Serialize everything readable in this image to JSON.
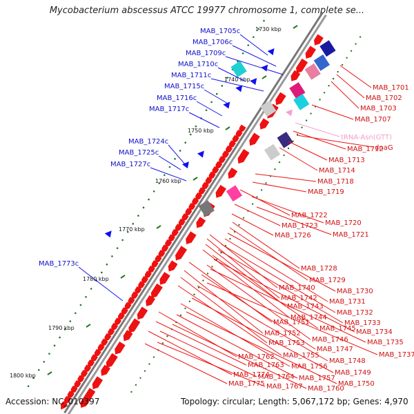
{
  "title": "Mycobacterium abscessus ATCC 19977 chromosome 1, complete se...",
  "footer": {
    "accession": "Accession: NC_010397",
    "summary": "Topology: circular; Length: 5,067,172 bp; Genes: 4,970"
  },
  "kbp_ticks": [
    "1730 kbp",
    "1740 kbp",
    "1750 kbp",
    "1760 kbp",
    "1770 kbp",
    "1780 kbp",
    "1790 kbp",
    "1800 kbp"
  ],
  "labels_minus": [
    "MAB_1705c",
    "MAB_1706c",
    "MAB_1709c",
    "MAB_1710c",
    "MAB_1711c",
    "MAB_1715c",
    "MAB_1716c",
    "MAB_1717c",
    "MAB_1724c",
    "MAB_1725c",
    "MAB_1727c",
    "MAB_1773c"
  ],
  "labels_plus": [
    "MAB_1701",
    "MAB_1702",
    "MAB_1703",
    "MAB_1707",
    "MAB_1712",
    "MAB_1713",
    "MAB_1714",
    "MAB_1718",
    "MAB_1719",
    "MAB_1722",
    "MAB_1720",
    "MAB_1723",
    "MAB_1721",
    "MAB_1726",
    "MAB_1728",
    "MAB_1729",
    "MAB_1740",
    "MAB_1730",
    "MAB_1742",
    "MAB_1731",
    "MAB_1743",
    "MAB_1732",
    "MAB_1744",
    "MAB_1733",
    "MAB_1751",
    "MAB_1745",
    "MAB_1734",
    "MAB_1752",
    "MAB_1746",
    "MAB_1735",
    "MAB_1753",
    "MAB_1747",
    "MAB_1737",
    "MAB_1755",
    "MAB_1748",
    "MAB_1762",
    "MAB_1756",
    "MAB_1749",
    "MAB_1763",
    "MAB_1774",
    "MAB_1764",
    "MAB_1757",
    "MAB_1750",
    "MAB_1775",
    "MAB_1767",
    "MAB_1760"
  ],
  "rna_label": "tRNA-Asn(GTT)",
  "dnaG_label": "dnaG",
  "colors": {
    "cds_plus": "#ee1111",
    "cds_minus": "#1111ee",
    "backbone": "#777777",
    "gc_skew": "#227722",
    "trna": "#f5a0d0"
  }
}
